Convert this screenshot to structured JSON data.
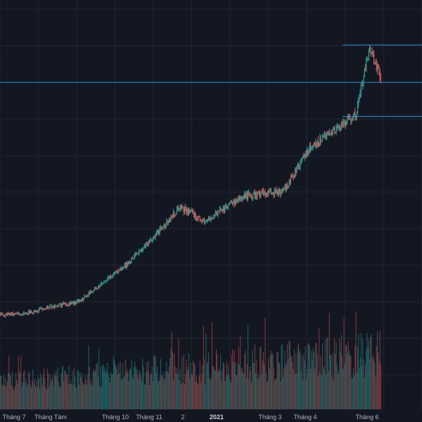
{
  "chart_data": {
    "type": "candlestick",
    "title": "",
    "xlabel": "",
    "ylabel": "",
    "theme": "dark",
    "grid": true,
    "colors": {
      "background": "#131722",
      "grid": "#1f2433",
      "up": "#26a69a",
      "down": "#ef5350",
      "level_line": "#2f8fcf",
      "tick_text": "#b2b5be"
    },
    "x_ticks": [
      {
        "label": "Tháng 7",
        "bold": false
      },
      {
        "label": "Tháng Tám",
        "bold": false
      },
      {
        "label": "Tháng 10",
        "bold": false
      },
      {
        "label": "Tháng 11",
        "bold": false
      },
      {
        "label": "2",
        "bold": false
      },
      {
        "label": "2021",
        "bold": true
      },
      {
        "label": "Tháng 3",
        "bold": false
      },
      {
        "label": "Tháng 4",
        "bold": false
      },
      {
        "label": "Tháng 6",
        "bold": false
      }
    ],
    "price_levels": [
      2.6,
      2.26,
      1.95
    ],
    "price_range": [
      0,
      2.85
    ],
    "price_trend_anchors": [
      [
        0,
        0.14
      ],
      [
        30,
        0.16
      ],
      [
        60,
        0.22
      ],
      [
        90,
        0.26
      ],
      [
        120,
        0.44
      ],
      [
        150,
        0.62
      ],
      [
        180,
        0.86
      ],
      [
        210,
        1.12
      ],
      [
        225,
        1.06
      ],
      [
        240,
        0.98
      ],
      [
        255,
        1.08
      ],
      [
        285,
        1.23
      ],
      [
        330,
        1.27
      ],
      [
        360,
        1.65
      ],
      [
        390,
        1.83
      ],
      [
        415,
        1.97
      ],
      [
        430,
        2.56
      ],
      [
        445,
        2.3
      ]
    ],
    "volume_range": [
      0,
      1.0
    ],
    "volume_spikes": [
      {
        "candle": 247,
        "value": 0.86
      },
      {
        "candle": 415,
        "value": 0.96
      },
      {
        "candle": 280,
        "value": 0.72
      },
      {
        "candle": 304,
        "value": 0.62
      }
    ],
    "candle_count": 445
  }
}
